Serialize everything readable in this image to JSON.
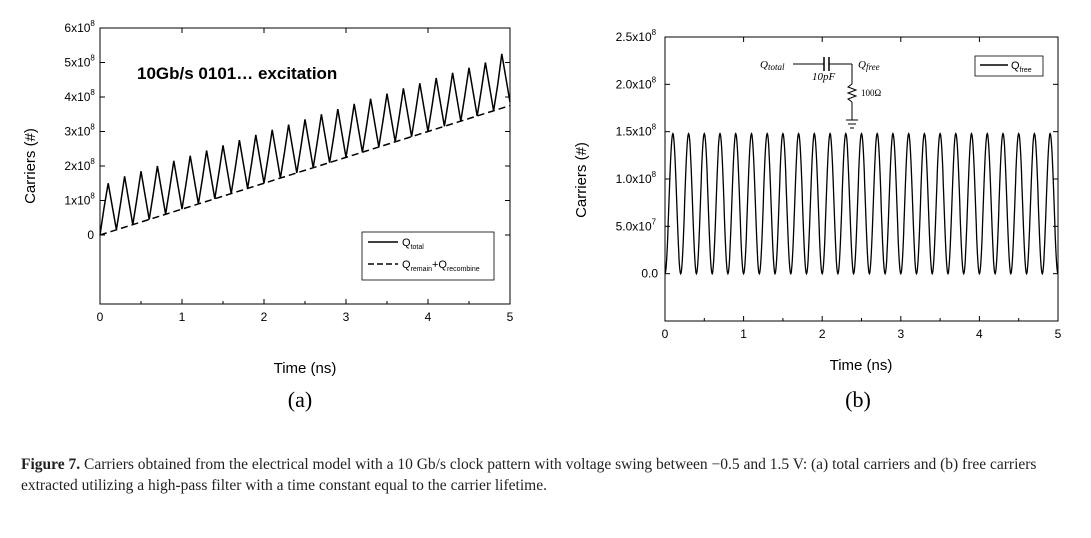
{
  "caption": {
    "label": "Figure 7.",
    "text": "Carriers obtained from the electrical model with a 10 Gb/s clock pattern with voltage swing between −0.5 and 1.5 V: (a) total carriers and (b) free carriers extracted utilizing a high-pass filter with a time constant equal to the carrier lifetime."
  },
  "chart_data": [
    {
      "type": "line",
      "panel_label": "(a)",
      "annotation": "10Gb/s 0101… excitation",
      "xlabel": "Time (ns)",
      "ylabel": "Carriers (#)",
      "xlim": [
        0,
        5
      ],
      "ylim": [
        -200000000,
        600000000
      ],
      "xticks": [
        {
          "v": 0,
          "label": "0"
        },
        {
          "v": 1,
          "label": "1"
        },
        {
          "v": 2,
          "label": "2"
        },
        {
          "v": 3,
          "label": "3"
        },
        {
          "v": 4,
          "label": "4"
        },
        {
          "v": 5,
          "label": "5"
        }
      ],
      "yticks": [
        {
          "v": 0,
          "base": "0",
          "exp": ""
        },
        {
          "v": 100000000,
          "base": "1x10",
          "exp": "8"
        },
        {
          "v": 200000000,
          "base": "2x10",
          "exp": "8"
        },
        {
          "v": 300000000,
          "base": "3x10",
          "exp": "8"
        },
        {
          "v": 400000000,
          "base": "4x10",
          "exp": "8"
        },
        {
          "v": 500000000,
          "base": "5x10",
          "exp": "8"
        },
        {
          "v": 600000000,
          "base": "6x10",
          "exp": "8"
        }
      ],
      "legend_position": "lower-right",
      "series": [
        {
          "name": "Q",
          "name_sub": "total",
          "style": "solid",
          "x": [
            0,
            0.05,
            0.1,
            0.2,
            0.25,
            0.3,
            0.4,
            0.45,
            0.5,
            0.6,
            0.65,
            0.7,
            0.8,
            0.85,
            0.9,
            1,
            1.05,
            1.1,
            1.2,
            1.25,
            1.3,
            1.4,
            1.45,
            1.5,
            1.6,
            1.65,
            1.7,
            1.8,
            1.85,
            1.9,
            2,
            2.05,
            2.1,
            2.2,
            2.25,
            2.3,
            2.4,
            2.45,
            2.5,
            2.6,
            2.65,
            2.7,
            2.8,
            2.85,
            2.9,
            3,
            3.05,
            3.1,
            3.2,
            3.25,
            3.3,
            3.4,
            3.45,
            3.5,
            3.6,
            3.65,
            3.7,
            3.8,
            3.85,
            3.9,
            4,
            4.05,
            4.1,
            4.2,
            4.25,
            4.3,
            4.4,
            4.45,
            4.5,
            4.6,
            4.65,
            4.7,
            4.8,
            4.85,
            4.9,
            5
          ],
          "y": [
            0,
            80000000,
            150000000,
            15000000,
            90000000,
            170000000,
            30000000,
            105000000,
            185000000,
            45000000,
            120000000,
            200000000,
            60000000,
            135000000,
            215000000,
            75000000,
            150000000,
            230000000,
            90000000,
            165000000,
            245000000,
            105000000,
            180000000,
            260000000,
            120000000,
            195000000,
            275000000,
            135000000,
            210000000,
            290000000,
            150000000,
            225000000,
            305000000,
            165000000,
            240000000,
            320000000,
            180000000,
            255000000,
            335000000,
            195000000,
            270000000,
            350000000,
            210000000,
            285000000,
            365000000,
            225000000,
            300000000,
            380000000,
            240000000,
            315000000,
            395000000,
            255000000,
            330000000,
            410000000,
            270000000,
            345000000,
            425000000,
            285000000,
            360000000,
            440000000,
            300000000,
            375000000,
            455000000,
            315000000,
            390000000,
            470000000,
            330000000,
            405000000,
            485000000,
            345000000,
            420000000,
            500000000,
            360000000,
            435000000,
            525000000,
            385000000
          ]
        },
        {
          "name": "Q",
          "name_sub": "remain",
          "name_mid": "+Q",
          "name_sub2": "recombine",
          "style": "dashed",
          "x": [
            0,
            5
          ],
          "y": [
            0,
            375000000
          ]
        }
      ]
    },
    {
      "type": "line",
      "panel_label": "(b)",
      "xlabel": "Time (ns)",
      "ylabel": "Carriers (#)",
      "xlim": [
        0,
        5
      ],
      "ylim": [
        -50000000,
        250000000
      ],
      "xticks": [
        {
          "v": 0,
          "label": "0"
        },
        {
          "v": 1,
          "label": "1"
        },
        {
          "v": 2,
          "label": "2"
        },
        {
          "v": 3,
          "label": "3"
        },
        {
          "v": 4,
          "label": "4"
        },
        {
          "v": 5,
          "label": "5"
        }
      ],
      "yticks": [
        {
          "v": 0,
          "base": "0.0",
          "exp": ""
        },
        {
          "v": 50000000,
          "base": "5.0x10",
          "exp": "7"
        },
        {
          "v": 100000000,
          "base": "1.0x10",
          "exp": "8"
        },
        {
          "v": 150000000,
          "base": "1.5x10",
          "exp": "8"
        },
        {
          "v": 200000000,
          "base": "2.0x10",
          "exp": "8"
        },
        {
          "v": 250000000,
          "base": "2.5x10",
          "exp": "8"
        }
      ],
      "legend_position": "top-right",
      "circuit": {
        "in_label": "Q",
        "in_sub": "total",
        "out_label": "Q",
        "out_sub": "free",
        "cap_label": "10pF",
        "res_label": "100Ω"
      },
      "series": [
        {
          "name": "Q",
          "name_sub": "free",
          "style": "solid",
          "waveform": "periodic",
          "period": 0.2,
          "min": 0,
          "max": 148000000,
          "peak_offset": 0.1,
          "x": [
            0,
            5
          ],
          "y": [
            0,
            0
          ]
        }
      ]
    }
  ]
}
